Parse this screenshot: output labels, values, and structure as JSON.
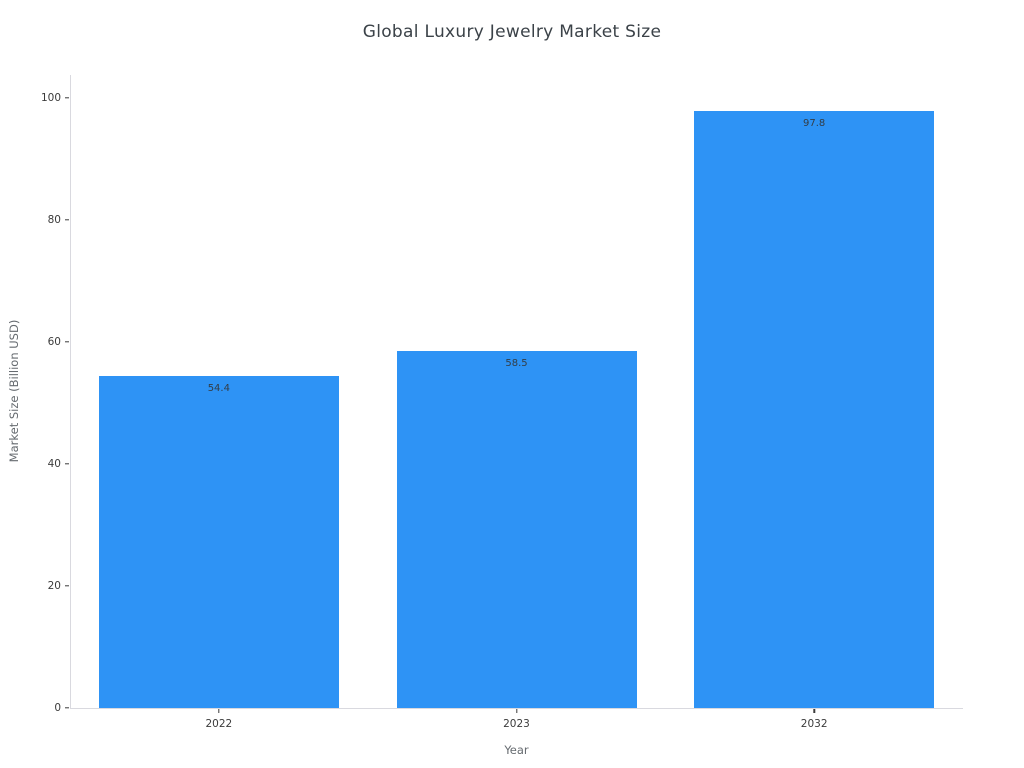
{
  "chart_data": {
    "type": "bar",
    "title": "Global Luxury Jewelry Market Size",
    "xlabel": "Year",
    "ylabel": "Market Size (Billion USD)",
    "categories": [
      "2022",
      "2023",
      "2032"
    ],
    "values": [
      54.4,
      58.5,
      97.8
    ],
    "value_labels": [
      "54.4",
      "58.5",
      "97.8"
    ],
    "yticks": [
      0,
      20,
      40,
      60,
      80,
      100
    ],
    "ylim": [
      0,
      103.8
    ],
    "grid": "off",
    "legend": "none",
    "bar_color": "#2e93f5"
  },
  "colors": {
    "background": "#ffffff",
    "bar": "#2e93f5",
    "axis_spine": "#d9d9df",
    "tick_mark": "#3b3b3b",
    "tick_label": "#3b3b3b",
    "axis_title": "#666b70",
    "chart_title": "#3b4248",
    "value_label": "#333d46"
  }
}
